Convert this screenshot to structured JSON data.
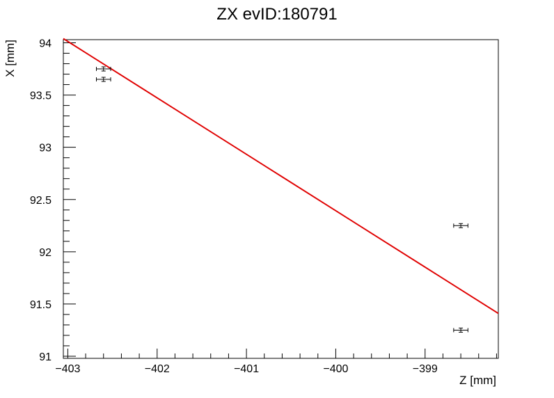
{
  "chart_data": {
    "type": "scatter",
    "title": "ZX evID:180791",
    "xlabel": "Z [mm]",
    "ylabel": "X [mm]",
    "xlim": [
      -403.05,
      -398.18
    ],
    "ylim": [
      90.98,
      94.03
    ],
    "x_major_ticks": [
      -403,
      -402,
      -401,
      -400,
      -399
    ],
    "x_tick_labels": [
      "−403",
      "−402",
      "−401",
      "−400",
      "−399"
    ],
    "y_major_ticks": [
      91,
      91.5,
      92,
      92.5,
      93,
      93.5,
      94
    ],
    "y_tick_labels": [
      "91",
      "91.5",
      "92",
      "92.5",
      "93",
      "93.5",
      "94"
    ],
    "grid": false,
    "points": [
      {
        "x": -402.6,
        "y": 93.75,
        "xerr": 0.08,
        "yerr": 0.02
      },
      {
        "x": -402.6,
        "y": 93.65,
        "xerr": 0.08,
        "yerr": 0.02
      },
      {
        "x": -398.6,
        "y": 92.25,
        "xerr": 0.08,
        "yerr": 0.02
      },
      {
        "x": -398.6,
        "y": 91.25,
        "xerr": 0.08,
        "yerr": 0.02
      }
    ],
    "fit_line": {
      "x": [
        -403.05,
        -398.18
      ],
      "y": [
        94.04,
        91.41
      ],
      "color": "#e00000"
    },
    "colors": {
      "points": "#000000",
      "fit": "#e00000",
      "frame": "#000000"
    }
  }
}
